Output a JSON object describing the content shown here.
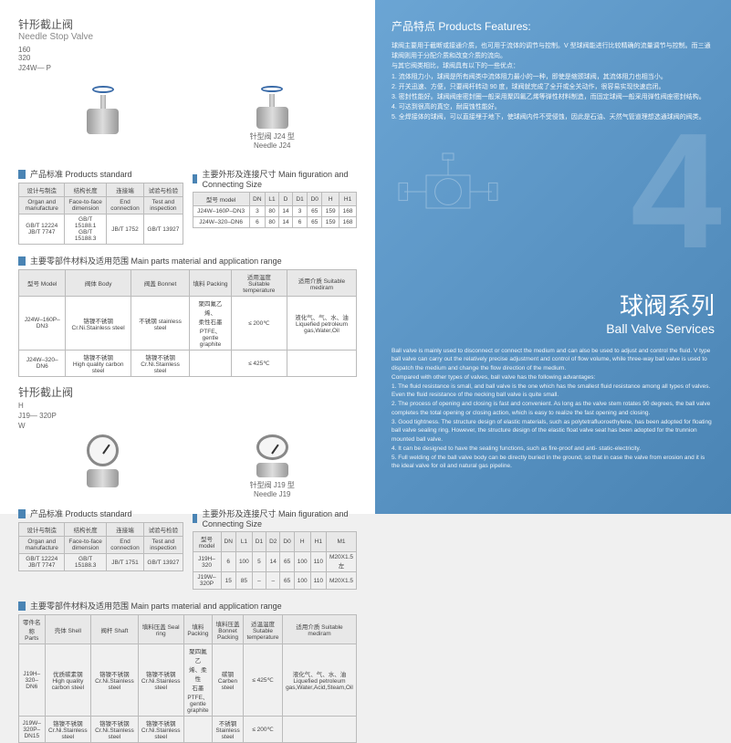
{
  "left": {
    "sec1": {
      "cn": "针形截止阀",
      "en": "Needle   Stop Valve",
      "model": "J24W— P",
      "nums": "160\n320",
      "cap1": "针型阀 J24 型 Needle J24"
    },
    "std_title": "产品标准 Products standard",
    "fig_title": "主要外形及连接尺寸 Main figuration and Connecting Size",
    "parts_title": "主要零部件材料及适用范围 Main parts material and application range",
    "std1": {
      "h": [
        "设计与制造",
        "结构长度",
        "连接端",
        "试验与检验"
      ],
      "h2": [
        "Organ and manufacture",
        "Face-to-face dimension",
        "End connection",
        "Test and inspection"
      ],
      "r": [
        "GB/T 12224\nJB/T 7747",
        "GB/T 15188.1\nGB/T 15188.3",
        "JB/T 1752",
        "GB/T 13927"
      ]
    },
    "fig1": {
      "h": [
        "型号 model",
        "DN",
        "L1",
        "D",
        "D1",
        "D0",
        "H",
        "H1"
      ],
      "rows": [
        [
          "J24W–160P–DN3",
          "3",
          "80",
          "14",
          "3",
          "65",
          "159",
          "168"
        ],
        [
          "J24W–320–DN6",
          "6",
          "80",
          "14",
          "6",
          "65",
          "159",
          "168"
        ]
      ]
    },
    "parts1": {
      "h": [
        "型号 Model",
        "阀体 Body",
        "阀盖 Bonnet",
        "填料 Packing",
        "适用温度\nSuitable temperature",
        "适用介质 Suitable mediram"
      ],
      "rows": [
        [
          "J24W–160P–DN3",
          "铬镍不锈钢\nCr.Ni.Stainless steel",
          "不锈钢 stainless steel",
          "聚四氟乙烯、\n柔性石墨\nPTFE、\ngentle graphite",
          "≤ 200℃",
          "液化气、气、水、油\nLiquefied petroleum\ngas,Water,Oil"
        ],
        [
          "J24W–320–DN6",
          "铬镍不锈钢\nHigh quality carbon steel",
          "铬镍不锈钢\nCr.Ni.Stainless steel",
          "",
          "≤ 425℃",
          ""
        ]
      ]
    },
    "sec2": {
      "cn": "针形截止阀",
      "model": "J19— 320P",
      "h": "H",
      "w": "W",
      "cap": "针型阀 J19 型 Needle J19"
    },
    "std2": {
      "h": [
        "设计与制造",
        "结构长度",
        "连接端",
        "试验与检验"
      ],
      "h2": [
        "Organ and manufacture",
        "Face-to-face dimension",
        "End connection",
        "Test and inspection"
      ],
      "r": [
        "GB/T 12224\nJB/T 7747",
        "GB/T 15188.3",
        "JB/T 1751",
        "GB/T 13927"
      ]
    },
    "fig2": {
      "h": [
        "型号 model",
        "DN",
        "L1",
        "D1",
        "D2",
        "D0",
        "H",
        "H1",
        "M1"
      ],
      "rows": [
        [
          "J19H–320",
          "6",
          "100",
          "5",
          "14",
          "65",
          "100",
          "110",
          "M20X1.5\n左"
        ],
        [
          "J19W–320P",
          "15",
          "85",
          "–",
          "–",
          "65",
          "100",
          "110",
          "M20X1.5"
        ]
      ]
    },
    "parts2": {
      "h": [
        "零件名称 Parts",
        "壳体 Shell",
        "阀杆 Shaft",
        "填料压盖 Seal ring",
        "填料 Packing",
        "填料压盖\nBonnet Packing",
        "适温温度\nSutable temperature",
        "适用介质 Suitable mediram"
      ],
      "rows": [
        [
          "J19H–320–DN6",
          "优质碳素钢\nHigh quality carbon steel",
          "铬镍不锈钢 Cr.Ni.Stainless steel",
          "铬镍不锈钢\nCr.Ni.Stainless steel",
          "聚四氟乙\n烯、柔性\n石墨\nPTFE、\ngentle graphite",
          "碳钢 Carben\nsteel",
          "≤ 425℃",
          "液化气、气、水、油\nLiquefied petroleum\ngas,Water,Acid,Steam,Oil"
        ],
        [
          "J19W–320P–DN15",
          "铬镍不锈钢\nCr.Ni.Stainless steel",
          "铬镍不锈钢 Cr.Ni.Stainless steel",
          "铬镍不锈钢\nCr.Ni.Stainless steel",
          "",
          "不锈钢\nStainless steel",
          "≤ 200℃",
          ""
        ]
      ]
    }
  },
  "right": {
    "feat_title": "产品特点 Products Features:",
    "feat_cn": "球阀主要用于截断或接通介质，也可用于流体的调节与控制。V 型球阀能进行比较精确的流量调节与控制。而三通球阀则用于分配介质和改变介质的流向。\n与其它阀类相比，球阀具有以下的一些优点：\n1. 流体阻力小，球阀是所有阀类中流体阻力最小的一种，即使是缩颈球阀，其流体阻力也相当小。\n2. 开关迅速、方便，只要阀杆转动 90 度，球阀就完成了全开或全关动作，很容易实现快速启闭。\n3. 密封性能好。球阀阀座密封圈一般采用聚四氟乙烯等弹性材料制造，而固定球阀一般采用弹性阀座密封结构。\n4. 可达到很高的真空，耐腐蚀性能好。\n5. 全焊接体的球阀，可以直接埋于地下，使球阀内件不受侵蚀，因此是石油、天然气管道理想选通球阀的阀类。",
    "title_cn": "球阀系列",
    "title_en": "Ball Valve Services",
    "desc": "Ball valve is mainly used to disconnect or connect the medium and can also be used to adjust and control the fluid. V type ball valve can carry out the relatively precise adjustment and control of flow volume, while three-way ball valve is used to dispatch the medium and change the flow direction of the medium.\nCompared with other types of valves, ball valve has the following advantages:\n1. The fluid resistance is small, and ball valve is the one which has the smallest fluid resistance among all types of valves. Even the fluid resistance of the necking ball valve is quite small.\n2. The process of opening and closing is fast and convenient. As long as the valve stem rotates 90 degrees, the ball valve completes the total opening or closing action, which is easy to realize the fast opening and closing.\n3. Good tightness. The structure design of elastic materials, such as polytetrafluoroethylene, has been adopted for floating ball valve sealing ring. However, the structure design of the elastic float valve seat has been adopted for the trunnion mounted ball valve.\n4. It can be designed to have the sealing functions, such as fire-proof and anti- static-electricity.\n5. Full welding of the ball valve body can be directly buried in the ground, so that in case the valve from erosion and it is the ideal valve for oil and natural gas pipeline."
  }
}
